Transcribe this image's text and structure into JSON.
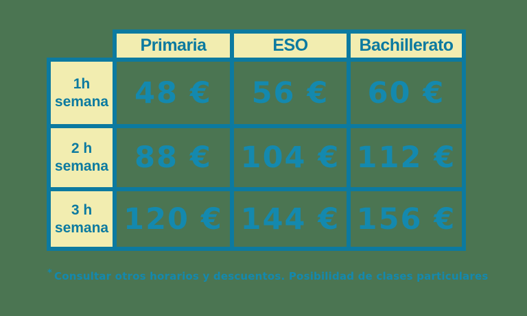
{
  "colors": {
    "background_green": "#4B7552",
    "border_teal": "#0C7AA0",
    "price_teal": "#1489AE",
    "cell_cream": "#F2EDB0"
  },
  "chart_data": {
    "type": "table",
    "title": "",
    "columns": [
      "Primaria",
      "ESO",
      "Bachillerato"
    ],
    "row_labels": [
      "1h semana",
      "2 h semana",
      "3 h semana"
    ],
    "rows": [
      {
        "label_line1": "1h",
        "label_line2": "semana",
        "cells": [
          "48 €",
          "56 €",
          "60 €"
        ],
        "values_eur": [
          48,
          56,
          60
        ]
      },
      {
        "label_line1": "2 h",
        "label_line2": "semana",
        "cells": [
          "88 €",
          "104 €",
          "112 €"
        ],
        "values_eur": [
          88,
          104,
          112
        ]
      },
      {
        "label_line1": "3 h",
        "label_line2": "semana",
        "cells": [
          "120 €",
          "144 €",
          "156 €"
        ],
        "values_eur": [
          120,
          144,
          156
        ]
      }
    ],
    "footnote_marker": "*",
    "footnote_text": "Consultar otros horarios y descuentos. Posibilidad de clases particulares",
    "layout_hints": {
      "currency": "EUR",
      "grid": "on",
      "header_position": "top-and-left"
    }
  }
}
